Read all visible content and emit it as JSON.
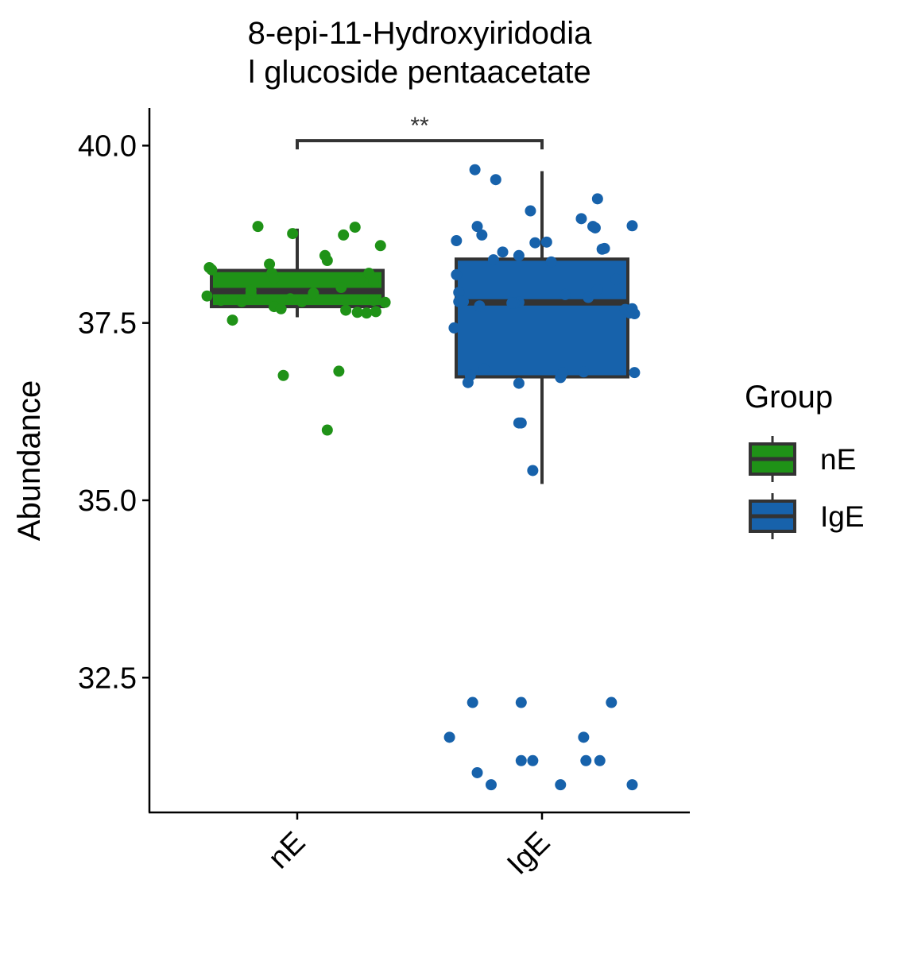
{
  "chart_data": {
    "type": "box",
    "title_lines": [
      "8-epi-11-Hydroxyiridodia",
      "l glucoside pentaacetate"
    ],
    "xlabel": "",
    "ylabel": "Abundance",
    "categories": [
      "nE",
      "IgE"
    ],
    "y_ticks": [
      "32.5",
      "35.0",
      "37.5",
      "40.0"
    ],
    "y_tick_values": [
      32.5,
      35.0,
      37.5,
      40.0
    ],
    "ylim": [
      30.6,
      40.53
    ],
    "grid": false,
    "legend": {
      "title": "Group",
      "placement": "right",
      "items": [
        {
          "label": "nE",
          "color": "#1f9217"
        },
        {
          "label": "IgE",
          "color": "#1762ab"
        }
      ]
    },
    "significance": {
      "label": "**",
      "from": "nE",
      "to": "IgE",
      "y": 40.07
    },
    "colors": {
      "nE": "#1f9217",
      "IgE": "#1762ab",
      "box_outline": "#333333"
    },
    "boxes": [
      {
        "group": "nE",
        "whisker_low": 37.58,
        "q1": 37.73,
        "median": 37.95,
        "q3": 38.24,
        "whisker_high": 38.83
      },
      {
        "group": "IgE",
        "whisker_low": 35.23,
        "q1": 36.74,
        "median": 37.79,
        "q3": 38.4,
        "whisker_high": 39.64
      }
    ],
    "series": [
      {
        "name": "nE",
        "jitter": [
          -0.38,
          -0.37,
          -0.39,
          -0.33,
          -0.28,
          -0.24,
          -0.2,
          -0.2,
          -0.17,
          -0.12,
          -0.11,
          -0.1,
          -0.1,
          -0.07,
          -0.06,
          -0.03,
          -0.02,
          0.02,
          0.07,
          0.12,
          0.13,
          0.13,
          0.19,
          0.2,
          0.21,
          0.25,
          0.26,
          0.27,
          0.3,
          0.31,
          0.33,
          0.34,
          0.36,
          0.33,
          0.18,
          0.38
        ],
        "values": [
          38.28,
          38.25,
          37.88,
          37.82,
          37.54,
          37.8,
          37.91,
          37.96,
          38.86,
          38.33,
          38.2,
          38.13,
          37.73,
          37.7,
          36.76,
          37.84,
          38.76,
          37.8,
          37.92,
          38.45,
          38.38,
          35.99,
          38.0,
          38.74,
          37.68,
          38.85,
          37.65,
          38.12,
          37.64,
          38.2,
          38.09,
          37.66,
          38.59,
          37.82,
          36.82,
          37.79
        ]
      },
      {
        "name": "IgE",
        "jitter": [
          -0.38,
          -0.37,
          -0.37,
          -0.36,
          -0.36,
          -0.35,
          -0.34,
          -0.32,
          -0.31,
          -0.29,
          -0.28,
          -0.27,
          -0.26,
          -0.25,
          -0.21,
          -0.2,
          -0.17,
          -0.1,
          -0.09,
          -0.1,
          -0.1,
          -0.1,
          -0.12,
          -0.13,
          -0.05,
          -0.04,
          -0.03,
          0.02,
          0.04,
          0.08,
          0.09,
          0.1,
          0.17,
          0.18,
          0.2,
          0.22,
          0.23,
          0.24,
          0.24,
          0.26,
          0.27,
          0.32,
          0.36,
          0.38,
          0.39,
          0.39,
          0.4,
          0.4,
          -0.4,
          -0.3,
          -0.28,
          -0.22,
          -0.09,
          -0.04,
          -0.09,
          0.08,
          0.18,
          0.19,
          0.25,
          0.3,
          0.39
        ],
        "values": [
          37.43,
          38.66,
          38.18,
          37.93,
          37.8,
          37.81,
          37.8,
          36.66,
          36.76,
          39.66,
          38.86,
          37.74,
          38.74,
          36.85,
          38.39,
          39.52,
          38.5,
          36.65,
          36.09,
          36.09,
          38.45,
          37.79,
          37.78,
          37.78,
          39.08,
          35.42,
          38.63,
          38.64,
          38.36,
          36.73,
          36.8,
          37.9,
          38.97,
          36.81,
          37.86,
          38.86,
          38.84,
          39.25,
          37.97,
          38.54,
          38.55,
          38.12,
          37.69,
          37.64,
          38.87,
          37.7,
          37.63,
          36.8,
          31.66,
          32.15,
          31.16,
          30.99,
          32.15,
          31.33,
          31.33,
          30.99,
          31.66,
          31.33,
          31.33,
          32.15,
          30.99
        ]
      }
    ]
  }
}
